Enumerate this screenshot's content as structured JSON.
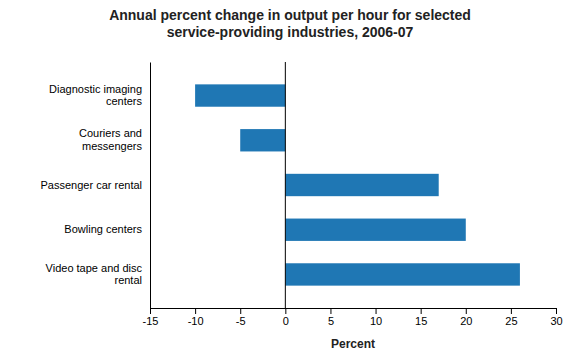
{
  "chart_data": {
    "type": "bar",
    "orientation": "horizontal",
    "title": "Annual percent change in output per hour for selected\nservice-providing industries, 2006-07",
    "categories": [
      "Video tape and disc\nrental",
      "Bowling centers",
      "Passenger car rental",
      "Couriers and\nmessengers",
      "Diagnostic imaging\ncenters"
    ],
    "values": [
      26,
      20,
      17,
      -5,
      -10
    ],
    "x_label": "Percent",
    "xlim": [
      -15,
      30
    ],
    "xticks": [
      -15,
      -10,
      -5,
      0,
      5,
      10,
      15,
      20,
      25,
      30
    ],
    "grid": false
  }
}
